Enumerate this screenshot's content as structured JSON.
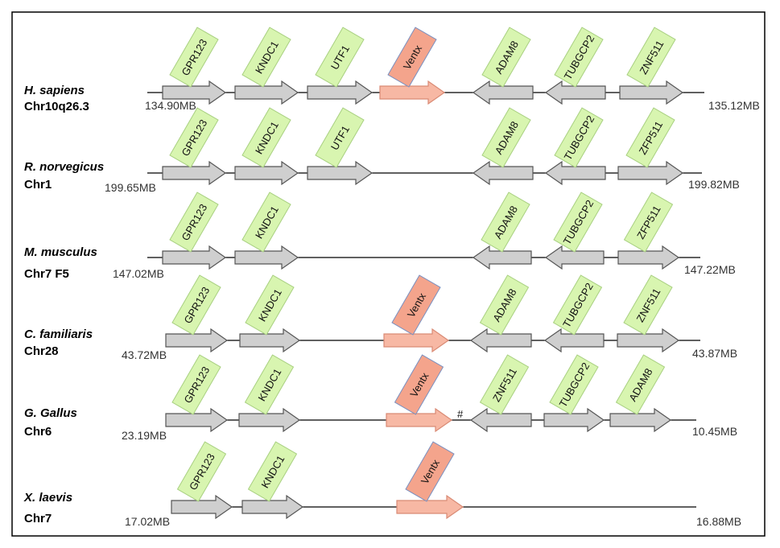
{
  "colors": {
    "gene_arrow": "#cfcfcf",
    "gene_label_box": "#d8f5b0",
    "ventx_arrow": "#f7b8a4",
    "ventx_label_box": "#f4a48c",
    "line": "#000000"
  },
  "rows": [
    {
      "species": "H. sapiens",
      "chromosome": "Chr10q26.3",
      "start": "134.90MB",
      "end": "135.12MB",
      "genes": [
        {
          "name": "GPR123",
          "dir": "right"
        },
        {
          "name": "KNDC1",
          "dir": "right"
        },
        {
          "name": "UTF1",
          "dir": "right"
        },
        {
          "name": "Ventx",
          "dir": "right",
          "highlight": true
        },
        {
          "name": "ADAM8",
          "dir": "left"
        },
        {
          "name": "TUBGCP2",
          "dir": "left"
        },
        {
          "name": "ZNF511",
          "dir": "right"
        }
      ]
    },
    {
      "species": "R. norvegicus",
      "chromosome": "Chr1",
      "start": "199.65MB",
      "end": "199.82MB",
      "genes": [
        {
          "name": "GPR123",
          "dir": "right"
        },
        {
          "name": "KNDC1",
          "dir": "right"
        },
        {
          "name": "UTF1",
          "dir": "right"
        },
        {
          "name": "ADAM8",
          "dir": "left"
        },
        {
          "name": "TUBGCP2",
          "dir": "left"
        },
        {
          "name": "ZFP511",
          "dir": "right"
        }
      ]
    },
    {
      "species": "M. musculus",
      "chromosome": "Chr7 F5",
      "start": "147.02MB",
      "end": "147.22MB",
      "genes": [
        {
          "name": "GPR123",
          "dir": "right"
        },
        {
          "name": "KNDC1",
          "dir": "right"
        },
        {
          "name": "ADAM8",
          "dir": "left"
        },
        {
          "name": "TUBGCP2",
          "dir": "left"
        },
        {
          "name": "ZFP511",
          "dir": "right"
        }
      ]
    },
    {
      "species": "C. familiaris",
      "chromosome": "Chr28",
      "start": "43.72MB",
      "end": "43.87MB",
      "genes": [
        {
          "name": "GPR123",
          "dir": "right"
        },
        {
          "name": "KNDC1",
          "dir": "right"
        },
        {
          "name": "Ventx",
          "dir": "right",
          "highlight": true
        },
        {
          "name": "ADAM8",
          "dir": "left"
        },
        {
          "name": "TUBGCP2",
          "dir": "left"
        },
        {
          "name": "ZNF511",
          "dir": "right"
        }
      ]
    },
    {
      "species": "G. Gallus",
      "chromosome": "Chr6",
      "start": "23.19MB",
      "end": "10.45MB",
      "marker": "#",
      "genes": [
        {
          "name": "GPR123",
          "dir": "right"
        },
        {
          "name": "KNDC1",
          "dir": "right"
        },
        {
          "name": "Ventx",
          "dir": "right",
          "highlight": true
        },
        {
          "name": "ZNF511",
          "dir": "left"
        },
        {
          "name": "TUBGCP2",
          "dir": "right"
        },
        {
          "name": "ADAM8",
          "dir": "right"
        }
      ]
    },
    {
      "species": "X. laevis",
      "chromosome": "Chr7",
      "start": "17.02MB",
      "end": "16.88MB",
      "genes": [
        {
          "name": "GPR123",
          "dir": "right"
        },
        {
          "name": "KNDC1",
          "dir": "right"
        },
        {
          "name": "Ventx",
          "dir": "right",
          "highlight": true
        }
      ]
    }
  ]
}
